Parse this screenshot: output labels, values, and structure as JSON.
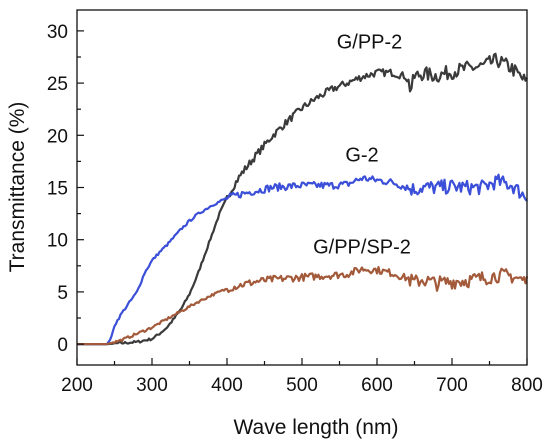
{
  "chart_data": {
    "type": "line",
    "xlabel": "Wave length (nm)",
    "ylabel": "Transmittance (%)",
    "xlim": [
      200,
      800
    ],
    "ylim": [
      -2,
      32
    ],
    "xticks": [
      200,
      300,
      400,
      500,
      600,
      700,
      800
    ],
    "yticks": [
      0,
      5,
      10,
      15,
      20,
      25,
      30
    ],
    "grid": false,
    "legend": "none",
    "series": [
      {
        "name": "G/PP-2",
        "color": "#3a3a3a",
        "x": [
          200,
          240,
          260,
          280,
          300,
          310,
          320,
          330,
          340,
          350,
          360,
          370,
          380,
          390,
          400,
          410,
          420,
          440,
          460,
          480,
          500,
          520,
          540,
          560,
          580,
          600,
          620,
          640,
          645,
          650,
          660,
          680,
          700,
          720,
          740,
          760,
          780,
          800
        ],
        "y": [
          0,
          0,
          0.1,
          0.2,
          0.5,
          1.0,
          1.6,
          2.5,
          3.5,
          4.8,
          6.5,
          8.5,
          10.5,
          12.5,
          14.0,
          15.3,
          16.4,
          18.2,
          19.9,
          21.3,
          22.6,
          23.6,
          24.4,
          25.0,
          25.6,
          26.0,
          26.0,
          25.6,
          24.3,
          25.6,
          25.9,
          25.7,
          26.1,
          26.4,
          26.6,
          27.2,
          26.4,
          25.0
        ]
      },
      {
        "name": "G-2",
        "color": "#3b4fd8",
        "x": [
          200,
          240,
          245,
          250,
          260,
          270,
          280,
          290,
          300,
          310,
          320,
          330,
          340,
          350,
          360,
          380,
          400,
          420,
          440,
          460,
          480,
          500,
          520,
          540,
          560,
          580,
          600,
          620,
          640,
          650,
          660,
          680,
          700,
          720,
          740,
          760,
          780,
          800
        ],
        "y": [
          0,
          0,
          0.5,
          1.8,
          3.0,
          4.0,
          5.0,
          6.8,
          8.0,
          8.8,
          9.5,
          10.3,
          11.1,
          11.8,
          12.4,
          13.3,
          14.0,
          14.4,
          14.7,
          15.0,
          15.1,
          15.2,
          15.2,
          15.2,
          15.3,
          15.9,
          15.7,
          15.5,
          15.0,
          14.8,
          15.0,
          15.0,
          15.1,
          15.0,
          15.0,
          15.6,
          15.2,
          14.0
        ]
      },
      {
        "name": "G/PP/SP-2",
        "color": "#a35a3a",
        "x": [
          200,
          240,
          250,
          260,
          280,
          300,
          320,
          340,
          360,
          380,
          400,
          420,
          440,
          460,
          480,
          500,
          520,
          540,
          560,
          580,
          600,
          620,
          640,
          650,
          660,
          680,
          700,
          720,
          740,
          760,
          780,
          800
        ],
        "y": [
          0,
          0,
          0.2,
          0.4,
          1.0,
          1.6,
          2.4,
          3.2,
          4.0,
          4.7,
          5.3,
          5.7,
          6.0,
          6.2,
          6.3,
          6.4,
          6.5,
          6.6,
          6.7,
          7.2,
          7.1,
          6.8,
          6.3,
          5.9,
          6.2,
          5.8,
          6.0,
          6.1,
          6.3,
          6.6,
          6.5,
          6.0
        ]
      }
    ],
    "annotations": [
      {
        "text": "G/PP-2",
        "x": 590,
        "y": 28.3
      },
      {
        "text": "G-2",
        "x": 580,
        "y": 17.5
      },
      {
        "text": "G/PP/SP-2",
        "x": 580,
        "y": 8.7
      }
    ]
  }
}
